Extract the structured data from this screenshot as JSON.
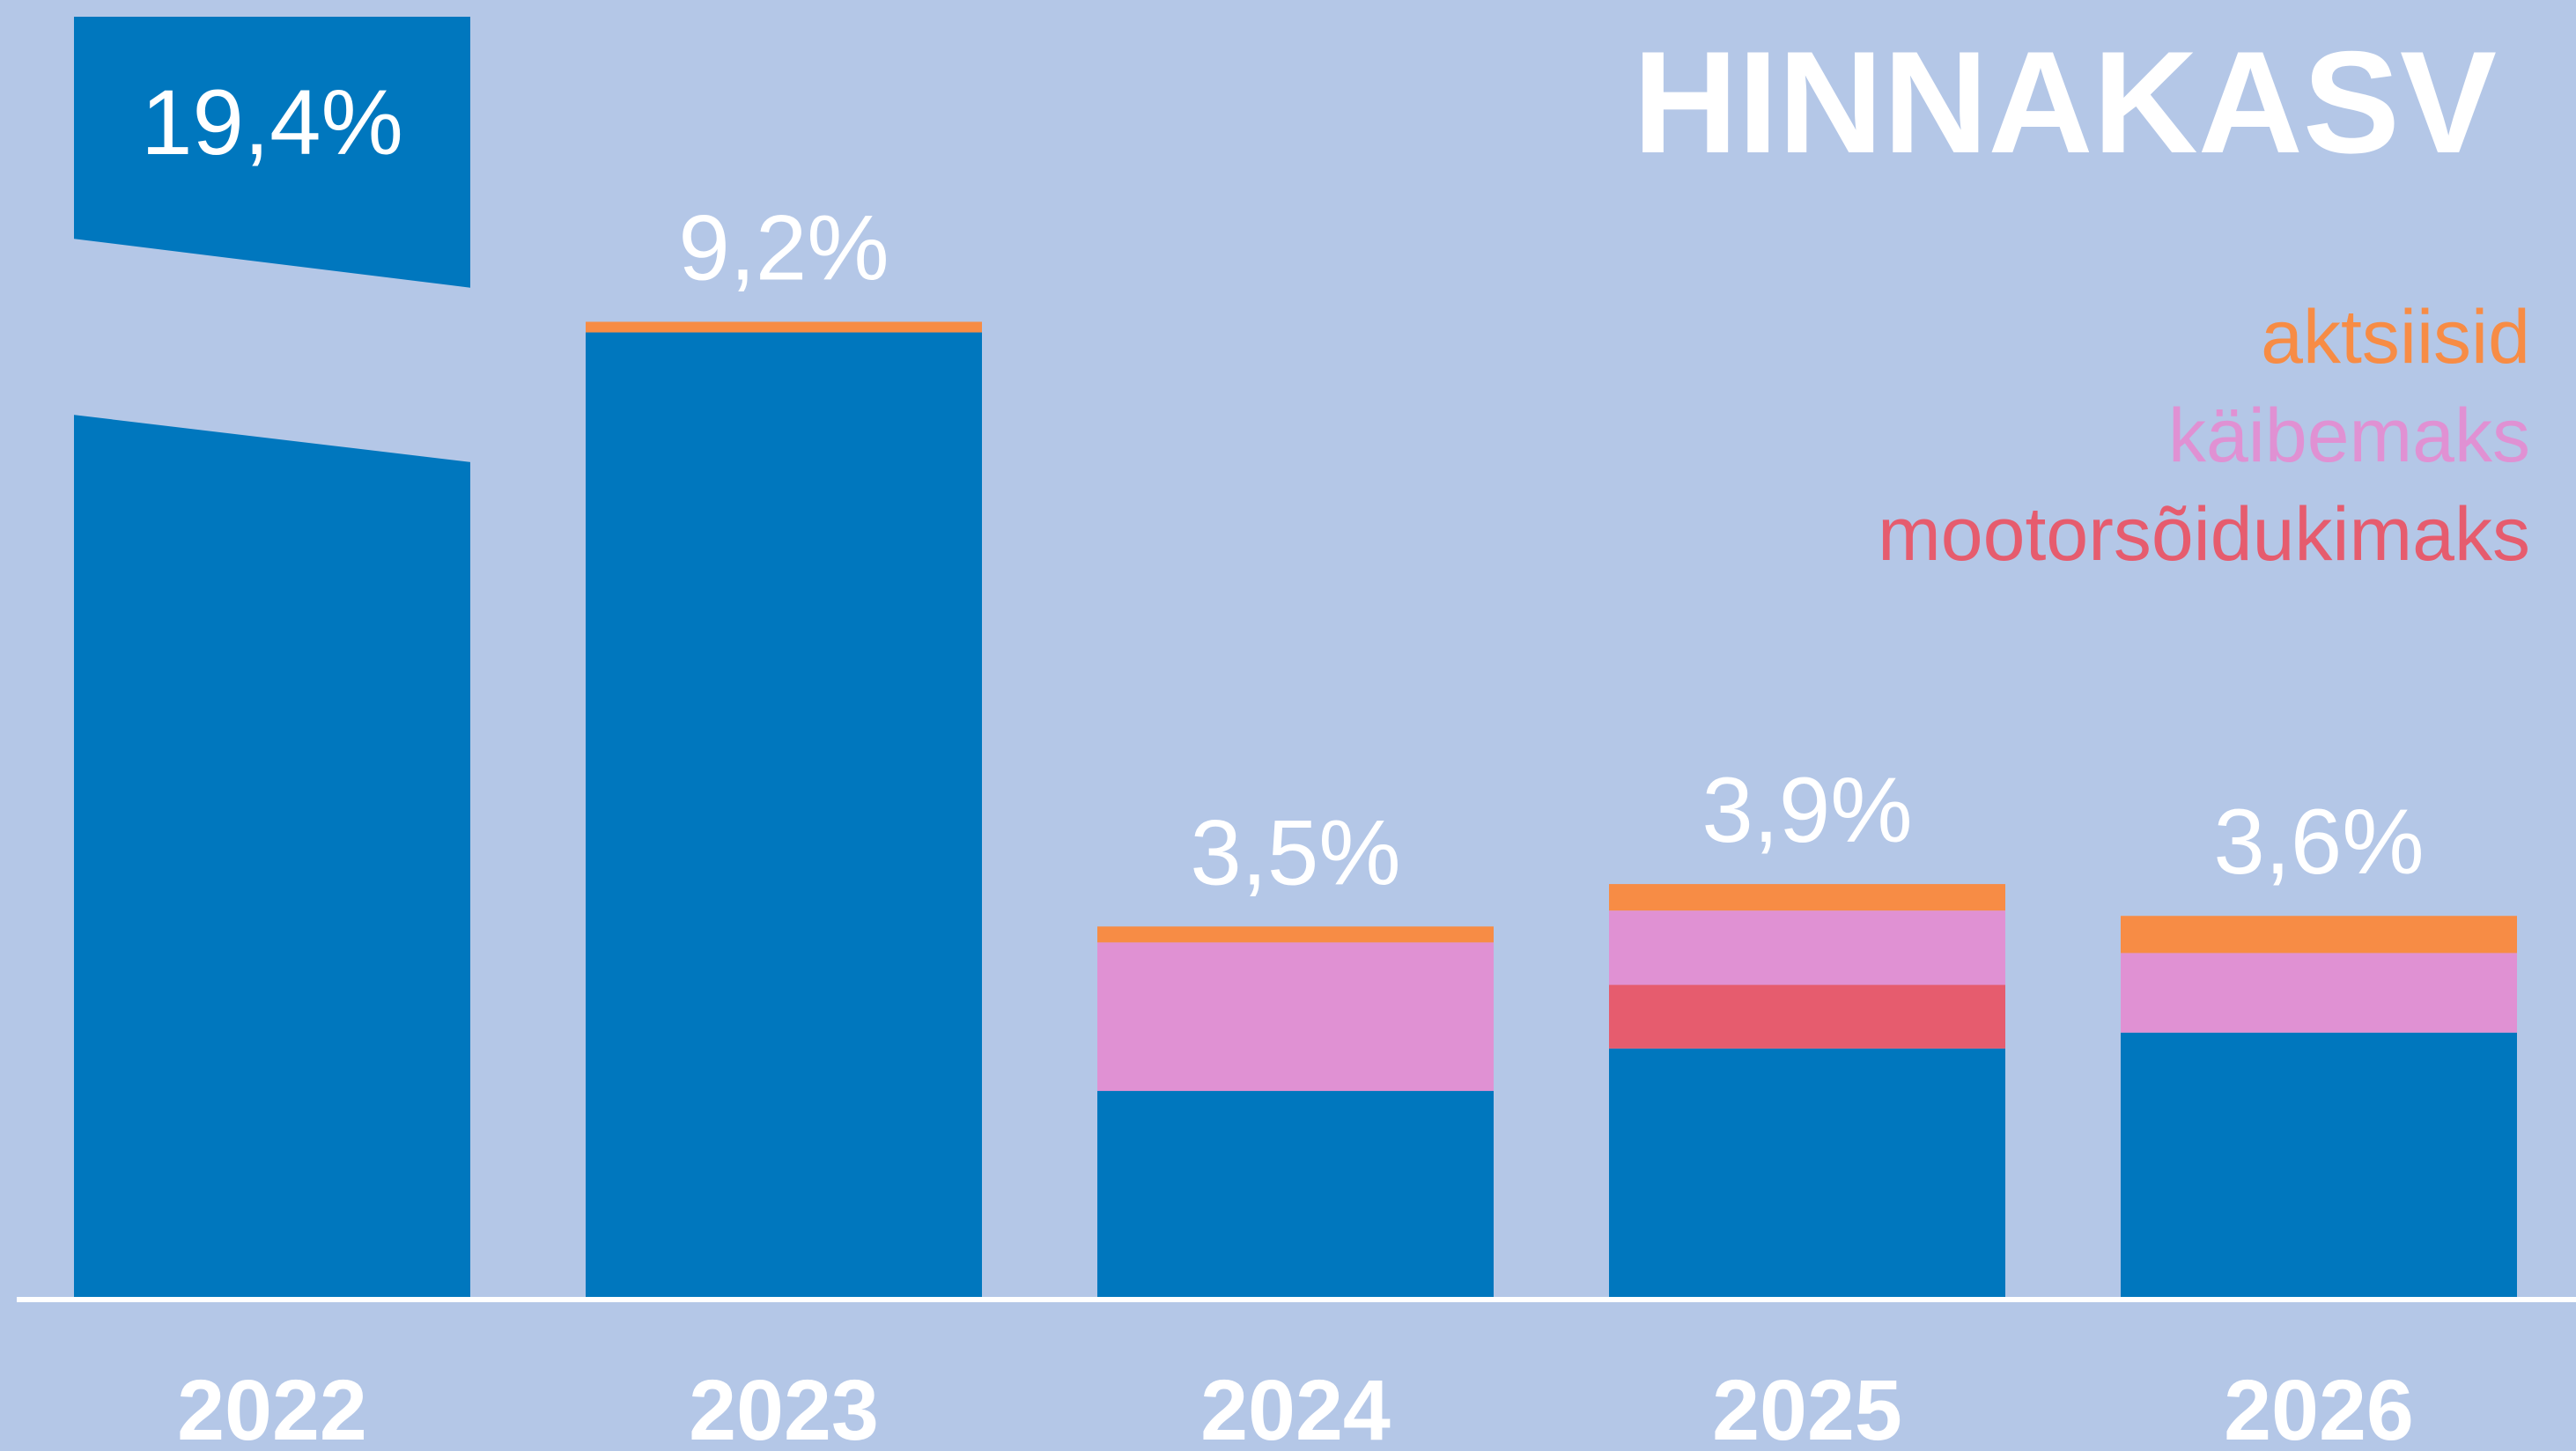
{
  "chart_data": {
    "type": "stacked_bar",
    "title": "HINNAKASV",
    "categories": [
      "2022",
      "2023",
      "2024",
      "2025",
      "2026"
    ],
    "series": [
      {
        "color": "#0077be",
        "values": [
          19.4,
          9.1,
          1.95,
          2.35,
          2.5
        ]
      },
      {
        "name": "mootorsõidukimaks",
        "color": "#e65c6e",
        "values": [
          0,
          0,
          0,
          0.6,
          0
        ]
      },
      {
        "name": "käibemaks",
        "color": "#e091d3",
        "values": [
          0,
          0,
          1.4,
          0.7,
          0.75
        ]
      },
      {
        "name": "aktsiisid",
        "color": "#f78c45",
        "values": [
          0,
          0.1,
          0.15,
          0.25,
          0.35
        ]
      }
    ],
    "totals": [
      19.4,
      9.2,
      3.5,
      3.9,
      3.6
    ],
    "total_labels": [
      "19,4%",
      "9,2%",
      "3,5%",
      "3,9%",
      "3,6%"
    ],
    "ylim": [
      0,
      12.2
    ],
    "axis_break": true,
    "background": "#b4c7e7",
    "text_color": "#ffffff"
  }
}
